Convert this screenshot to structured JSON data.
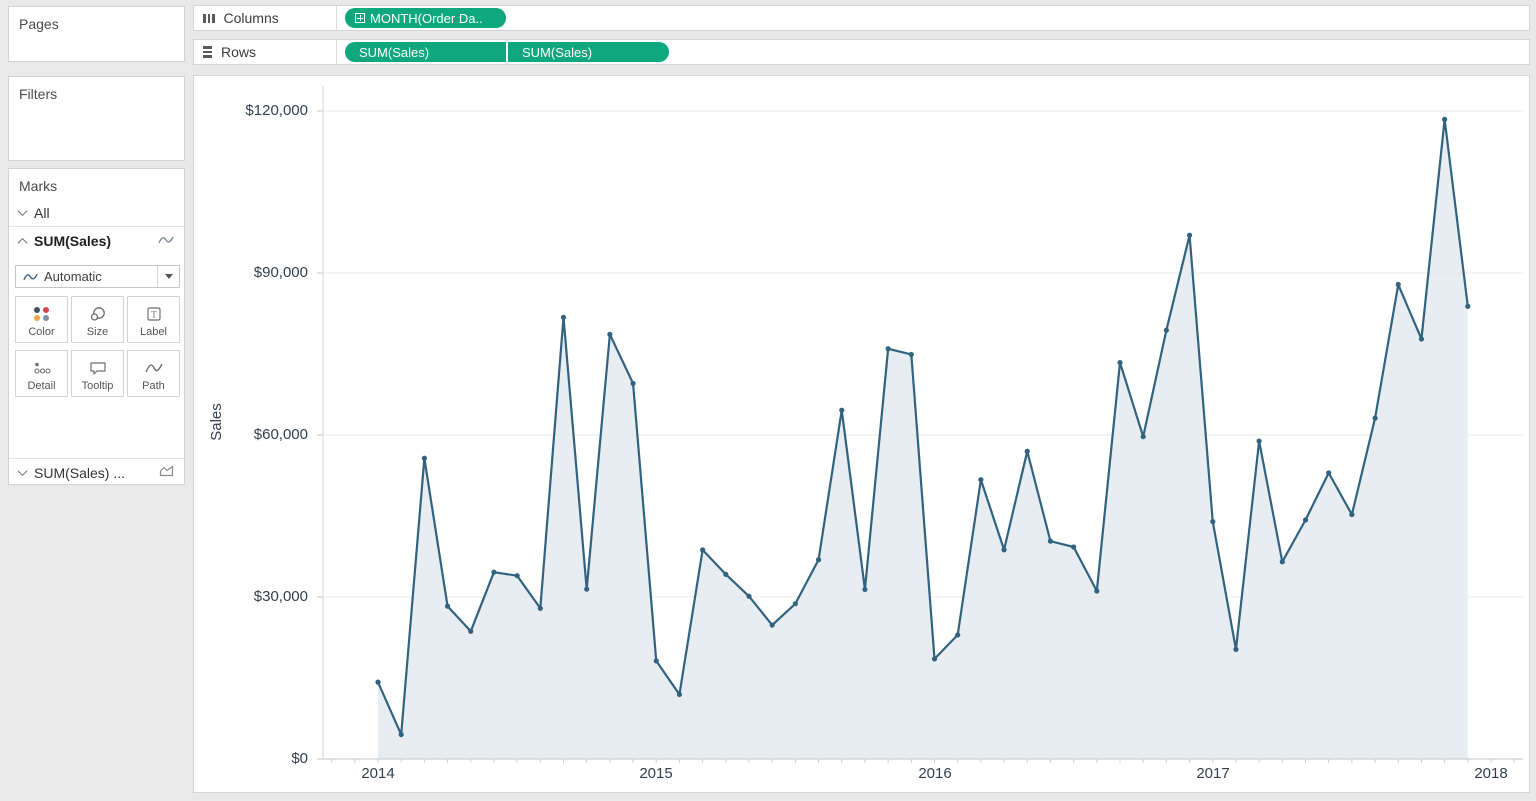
{
  "shelves": {
    "columns": {
      "label": "Columns",
      "pill": {
        "text": "MONTH(Order Da..",
        "icon": "expand-plus",
        "color": "#0fa77d"
      }
    },
    "rows": {
      "label": "Rows",
      "pills": [
        {
          "text": "SUM(Sales)"
        },
        {
          "text": "SUM(Sales)"
        }
      ]
    }
  },
  "sidebar": {
    "pages_title": "Pages",
    "filters_title": "Filters",
    "marks": {
      "title": "Marks",
      "all_row": {
        "label": "All"
      },
      "active_row": {
        "label": "SUM(Sales)",
        "mark_icon": "line-icon"
      },
      "mark_type_selector": {
        "selected": "Automatic",
        "icon": "line-icon"
      },
      "buttons": [
        {
          "label": "Color"
        },
        {
          "label": "Size"
        },
        {
          "label": "Label"
        },
        {
          "label": "Detail"
        },
        {
          "label": "Tooltip"
        },
        {
          "label": "Path"
        }
      ],
      "collapsed_row": {
        "label": "SUM(Sales) ...",
        "mark_icon": "area-icon"
      }
    }
  },
  "chart_data": {
    "type": "line",
    "dual_axis": true,
    "series": [
      {
        "name": "SUM(Sales)",
        "mark": "line"
      },
      {
        "name": "SUM(Sales)",
        "mark": "area"
      }
    ],
    "values_shared_by_series": true,
    "title": "",
    "xlabel": "",
    "ylabel": "Sales",
    "x": [
      "2014-01",
      "2014-02",
      "2014-03",
      "2014-04",
      "2014-05",
      "2014-06",
      "2014-07",
      "2014-08",
      "2014-09",
      "2014-10",
      "2014-11",
      "2014-12",
      "2015-01",
      "2015-02",
      "2015-03",
      "2015-04",
      "2015-05",
      "2015-06",
      "2015-07",
      "2015-08",
      "2015-09",
      "2015-10",
      "2015-11",
      "2015-12",
      "2016-01",
      "2016-02",
      "2016-03",
      "2016-04",
      "2016-05",
      "2016-06",
      "2016-07",
      "2016-08",
      "2016-09",
      "2016-10",
      "2016-11",
      "2016-12",
      "2017-01",
      "2017-02",
      "2017-03",
      "2017-04",
      "2017-05",
      "2017-06",
      "2017-07",
      "2017-08",
      "2017-09",
      "2017-10",
      "2017-11",
      "2017-12"
    ],
    "values": [
      14237,
      4520,
      55691,
      28295,
      23648,
      34595,
      33946,
      27909,
      81777,
      31453,
      78629,
      69546,
      18174,
      11951,
      38726,
      34195,
      30132,
      24797,
      28765,
      36898,
      64596,
      31405,
      75973,
      74920,
      18542,
      22979,
      51716,
      38750,
      56988,
      40344,
      39261,
      31115,
      73410,
      59688,
      79412,
      96999,
      43971,
      20301,
      58872,
      36522,
      44261,
      52982,
      45264,
      63121,
      87867,
      77777,
      118448,
      83829
    ],
    "x_axis_ticks": [
      "2014",
      "2015",
      "2016",
      "2017",
      "2018"
    ],
    "y_axis_ticks": [
      "$120,000",
      "$90,000",
      "$60,000",
      "$30,000",
      "$0"
    ],
    "ylim": [
      0,
      126000
    ],
    "grid": "horizontal",
    "line_color": "#31637f",
    "area_color": "#e8edf2",
    "marker": "circle"
  }
}
